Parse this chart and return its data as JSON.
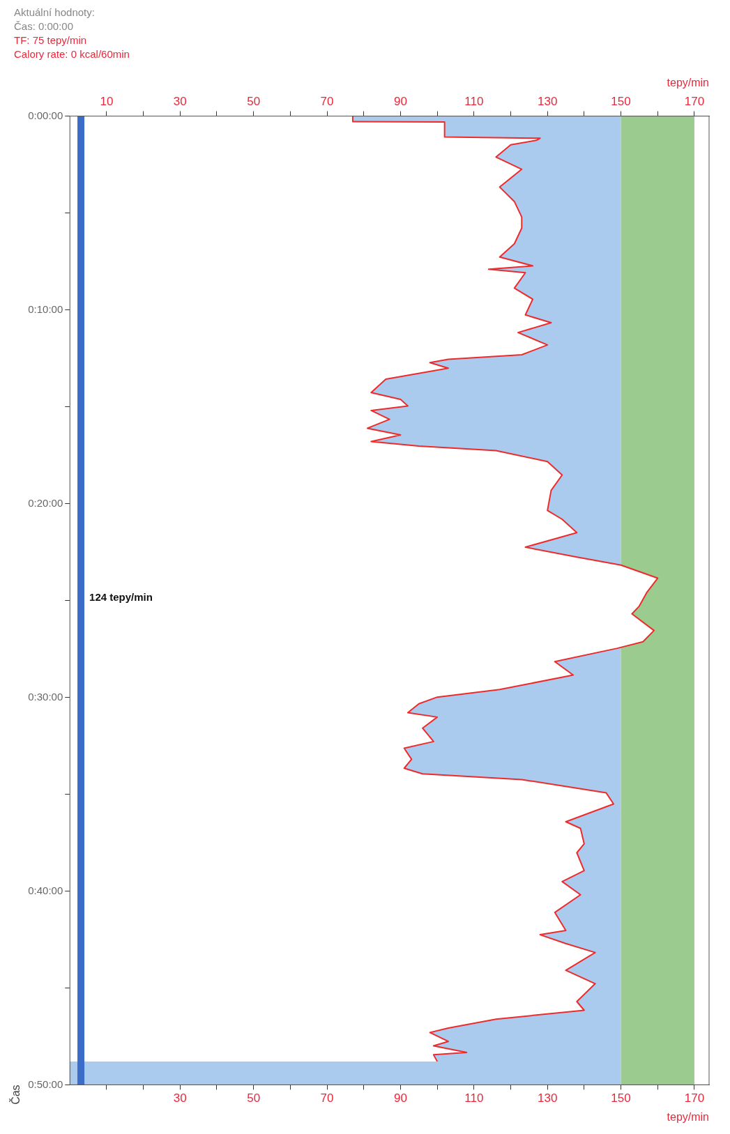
{
  "chart_data": {
    "type": "area",
    "orientation": "horizontal",
    "xlabel": "tepy/min",
    "x2label": "tepy/min",
    "ylabel": "Čas",
    "annotations": [
      "Aktuální hodnoty:",
      "Čas: 0:00:00",
      "TF: 75 tepy/min",
      "Calory rate: 0 kcal/60min"
    ],
    "xlim": [
      0,
      174
    ],
    "xticks": [
      {
        "value": 10,
        "label": null
      },
      {
        "value": 20,
        "label": null
      },
      30,
      {
        "value": 40,
        "label": null
      },
      50,
      {
        "value": 60,
        "label": null
      },
      70,
      {
        "value": 80,
        "label": null
      },
      90,
      {
        "value": 100,
        "label": null
      },
      110,
      {
        "value": 120,
        "label": null
      },
      130,
      {
        "value": 140,
        "label": null
      },
      150,
      {
        "value": 160,
        "label": null
      },
      170
    ],
    "x2lim": [
      0,
      174
    ],
    "x2ticks": [
      10,
      {
        "value": 20,
        "label": null
      },
      30,
      {
        "value": 40,
        "label": null
      },
      50,
      {
        "value": 60,
        "label": null
      },
      70,
      {
        "value": 80,
        "label": null
      },
      90,
      {
        "value": 100,
        "label": null
      },
      110,
      {
        "value": 120,
        "label": null
      },
      130,
      {
        "value": 140,
        "label": null
      },
      150,
      {
        "value": 160,
        "label": null
      },
      170
    ],
    "ylim": [
      0.8333,
      0
    ],
    "yticks": [
      {
        "value": 0,
        "label": "0:00:00"
      },
      {
        "value": 0.0833,
        "label": null
      },
      {
        "value": 0.1667,
        "label": "0:10:00"
      },
      {
        "value": 0.25,
        "label": null
      },
      {
        "value": 0.3333,
        "label": "0:20:00"
      },
      {
        "value": 0.4167,
        "label": null
      },
      {
        "value": 0.5,
        "label": "0:30:00"
      },
      {
        "value": 0.5833,
        "label": null
      },
      {
        "value": 0.6667,
        "label": "0:40:00"
      },
      {
        "value": 0.75,
        "label": null
      },
      {
        "value": 0.8333,
        "label": "0:50:00"
      }
    ],
    "bands": [
      {
        "axis": "x",
        "from": 0,
        "to": 150,
        "color": "#aacbee"
      },
      {
        "axis": "x",
        "from": 150,
        "to": 170,
        "color": "#9ccb8f"
      }
    ],
    "ref_lines": [
      {
        "axis": "x",
        "value": 3,
        "label": "124 tepy/min",
        "color": "#3a6cc8"
      }
    ],
    "series": [
      {
        "color": "#ee2a2a",
        "x": [
          0,
          0.0047,
          0.005,
          0.018,
          0.019,
          0.0208,
          0.0247,
          0.0352,
          0.0457,
          0.061,
          0.0735,
          0.0868,
          0.0963,
          0.1098,
          0.1212,
          0.1288,
          0.1317,
          0.1347,
          0.148,
          0.1575,
          0.171,
          0.1777,
          0.1862,
          0.1968,
          0.2053,
          0.2092,
          0.212,
          0.2168,
          0.2263,
          0.2378,
          0.2437,
          0.2493,
          0.2532,
          0.2608,
          0.2685,
          0.2742,
          0.28,
          0.2838,
          0.2877,
          0.2972,
          0.3087,
          0.322,
          0.3392,
          0.3468,
          0.3583,
          0.3708,
          0.3793,
          0.3862,
          0.3975,
          0.41,
          0.4215,
          0.4282,
          0.4425,
          0.4522,
          0.4578,
          0.4693,
          0.4808,
          0.4883,
          0.4933,
          0.4998,
          0.5055,
          0.5132,
          0.517,
          0.5265,
          0.538,
          0.5438,
          0.5533,
          0.561,
          0.5658,
          0.5707,
          0.5822,
          0.5917,
          0.607,
          0.6127,
          0.626,
          0.6337,
          0.649,
          0.6585,
          0.6698,
          0.685,
          0.7005,
          0.7042,
          0.7118,
          0.7195,
          0.7348,
          0.7463,
          0.7617,
          0.7692,
          0.7768,
          0.7845,
          0.7883,
          0.796,
          0.7998,
          0.8055,
          0.8075,
          0.8132
        ],
        "values": [
          77,
          77,
          102,
          102,
          128,
          127,
          120,
          116,
          123,
          117,
          121,
          123,
          123,
          121,
          117,
          126,
          114,
          124,
          121,
          126,
          124,
          131,
          122,
          130,
          123,
          103,
          98,
          103,
          86,
          82,
          90,
          92,
          82,
          87,
          81,
          90,
          82,
          95,
          116,
          130,
          134,
          131,
          130,
          134,
          138,
          124,
          138,
          150,
          160,
          157,
          155,
          153,
          159,
          156,
          149,
          132,
          137,
          125,
          117,
          100,
          95,
          92,
          100,
          96,
          99,
          91,
          93,
          91,
          96,
          123,
          146,
          148,
          135,
          139,
          140,
          138,
          140,
          134,
          139,
          132,
          135,
          128,
          135,
          143,
          135,
          143,
          138,
          140,
          116,
          103,
          98,
          103,
          99,
          108,
          99,
          100
        ]
      }
    ]
  }
}
